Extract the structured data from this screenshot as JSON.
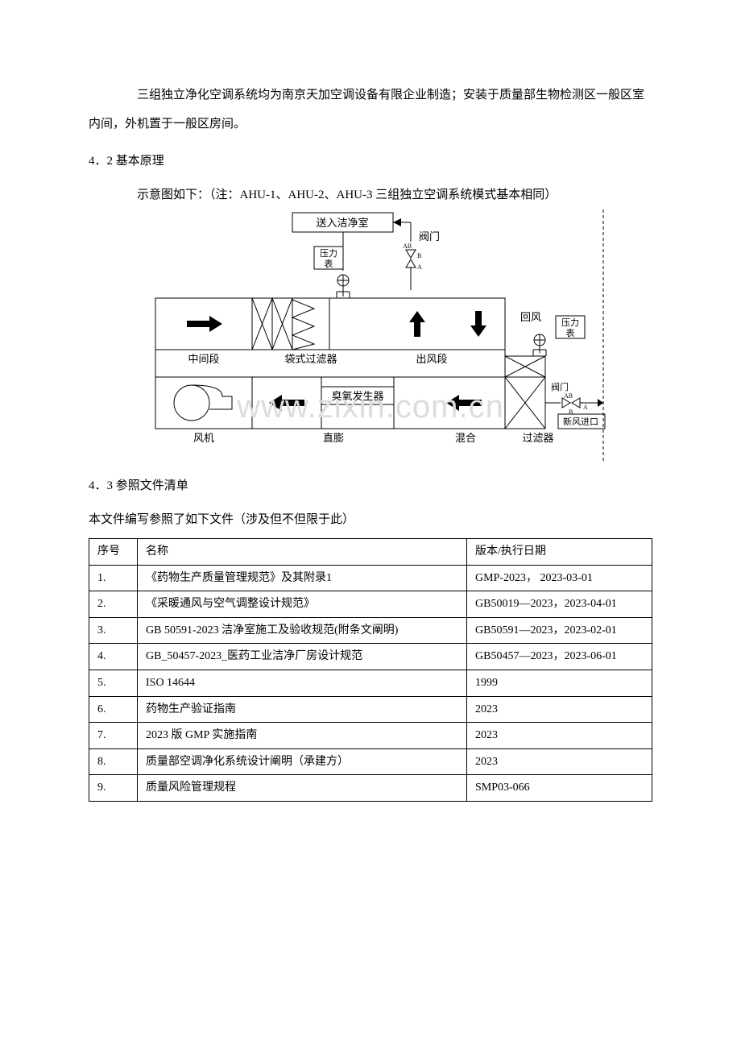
{
  "paragraphs": {
    "p1": "三组独立净化空调系统均为南京天加空调设备有限企业制造；安装于质量部生物检测区一般区室内间，外机置于一般区房间。",
    "s42": "4．2 基本原理",
    "p2": "示意图如下：（注：AHU-1、AHU-2、AHU-3 三组独立空调系统模式基本相同）",
    "s43": "4．3 参照文件清单",
    "p3": "本文件编写参照了如下文件（涉及但不但限于此）"
  },
  "diagram": {
    "labels": {
      "to_clean": "送入洁净室",
      "valve": "阀门",
      "pressure": "压力",
      "gauge": "表",
      "return_air": "回风",
      "mid_section": "中间段",
      "bag_filter": "袋式过滤器",
      "out_section": "出风段",
      "ozone": "臭氧发生器",
      "fan": "风机",
      "dx": "直膨",
      "mix": "混合",
      "valve_ab": "阀门",
      "fresh_air": "新风进口",
      "filter": "过滤器",
      "ab": "AB",
      "a": "A",
      "b": "B"
    },
    "colors": {
      "stroke": "#000000",
      "dashed": "#000000",
      "bg": "#ffffff",
      "fill_black": "#000000"
    },
    "style": {
      "line_width": 1,
      "font_size": 13,
      "dash": "4,3"
    }
  },
  "watermark": "www.zixin.com.cn",
  "ref_table": {
    "header": {
      "seq": "序号",
      "name": "名称",
      "version": "版本/执行日期"
    },
    "rows": [
      {
        "seq": "1.",
        "name": "《药物生产质量管理规范》及其附录1",
        "version": "GMP-2023，     2023-03-01"
      },
      {
        "seq": "2.",
        "name": "《采暖通风与空气调整设计规范》",
        "version": "GB50019—2023，2023-04-01"
      },
      {
        "seq": "3.",
        "name": "GB 50591-2023 洁净室施工及验收规范(附条文阐明)",
        "version": "GB50591—2023，2023-02-01"
      },
      {
        "seq": "4.",
        "name": "GB_50457-2023_医药工业洁净厂房设计规范",
        "version": "GB50457—2023，2023-06-01"
      },
      {
        "seq": "5.",
        "name": "ISO 14644",
        "version": "1999"
      },
      {
        "seq": "6.",
        "name": "药物生产验证指南",
        "version": "2023"
      },
      {
        "seq": "7.",
        "name": "2023 版 GMP 实施指南",
        "version": "2023"
      },
      {
        "seq": "8.",
        "name": "质量部空调净化系统设计阐明（承建方）",
        "version": "2023"
      },
      {
        "seq": "9.",
        "name": "质量风险管理规程",
        "version": "SMP03-066"
      }
    ]
  }
}
